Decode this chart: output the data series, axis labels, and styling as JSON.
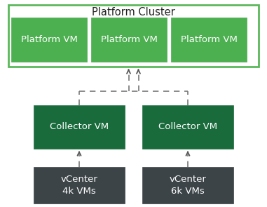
{
  "background_color": "#ffffff",
  "platform_cluster_border_color": "#5cb85c",
  "platform_cluster_fill": "#ffffff",
  "platform_cluster_label": "Platform Cluster",
  "platform_cluster_label_fontsize": 10.5,
  "platform_vm_color": "#4caf50",
  "platform_vm_label": "Platform VM",
  "platform_vm_fontsize": 9.5,
  "collector_vm_color": "#1a6b3c",
  "collector_vm_label": "Collector VM",
  "collector_vm_fontsize": 9.5,
  "vcenter_color": "#3c4447",
  "vcenter_labels": [
    "vCenter\n4k VMs",
    "vCenter\n6k VMs"
  ],
  "vcenter_fontsize": 9.5,
  "text_color_white": "#ffffff",
  "text_color_dark": "#222222",
  "arrow_color": "#555555",
  "dashed_color": "#777777",
  "fig_w": 3.81,
  "fig_h": 2.95,
  "dpi": 100
}
